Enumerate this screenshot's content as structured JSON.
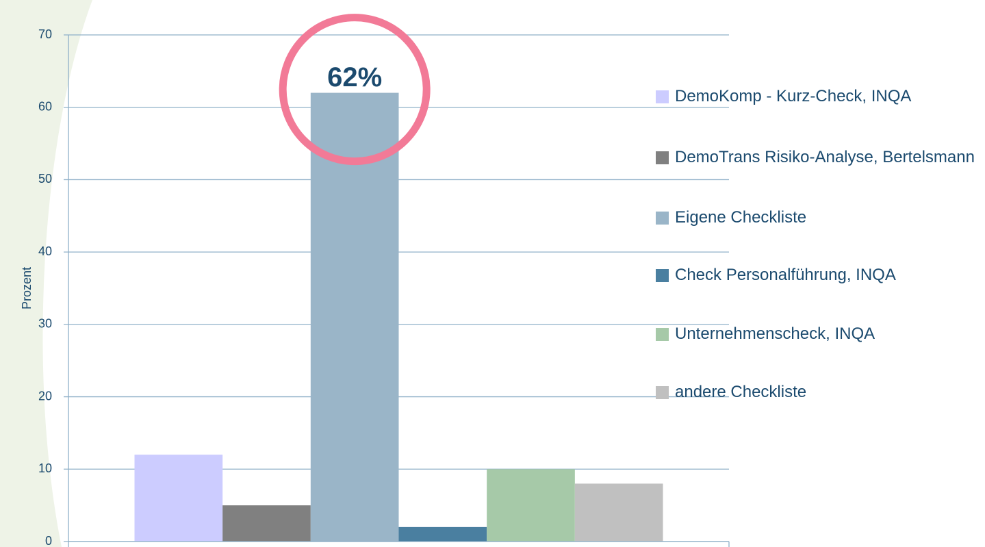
{
  "chart_data": {
    "type": "bar",
    "categories": [
      null
    ],
    "y_label": "Prozent",
    "series": [
      {
        "name": "DemoKomp - Kurz-Check, INQA",
        "color": "#ccccff",
        "values": [
          12
        ]
      },
      {
        "name": "DemoTrans Risiko-Analyse, Bertelsmann",
        "color": "#808080",
        "values": [
          5
        ]
      },
      {
        "name": "Eigene Checkliste",
        "color": "#9ab5c8",
        "values": [
          62
        ],
        "value_labels": [
          "62%"
        ]
      },
      {
        "name": "Check Personalführung, INQA",
        "color": "#4a7fa0",
        "values": [
          2
        ]
      },
      {
        "name": "Unternehmenscheck, INQA",
        "color": "#a6c9a8",
        "values": [
          10
        ]
      },
      {
        "name": "andere Checkliste",
        "color": "#c0c0c0",
        "values": [
          8
        ]
      }
    ],
    "ylim": [
      0,
      70
    ],
    "yticks": [
      0,
      10,
      20,
      30,
      40,
      50,
      60,
      70
    ],
    "grid": true,
    "legend": "right"
  }
}
